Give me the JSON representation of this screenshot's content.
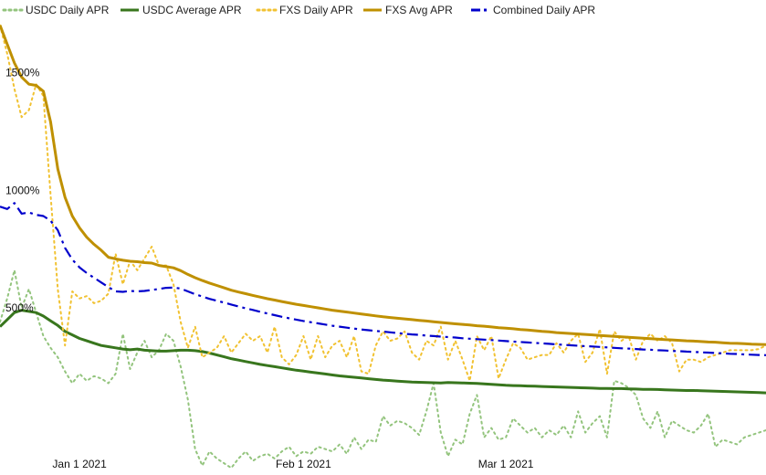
{
  "chart_data": {
    "type": "line",
    "title": "",
    "xlabel": "",
    "ylabel": "",
    "x_ticks": [
      {
        "label": "Jan 1 2021",
        "day": 11
      },
      {
        "label": "Feb 1 2021",
        "day": 42
      },
      {
        "label": "Mar 1 2021",
        "day": 70
      }
    ],
    "y_ticks": [
      {
        "label": "500%",
        "value": 500
      },
      {
        "label": "1000%",
        "value": 1000
      },
      {
        "label": "1500%",
        "value": 1500
      }
    ],
    "xlim": [
      0,
      106
    ],
    "ylim": [
      -190,
      1750
    ],
    "grid": false,
    "legend_position": "top",
    "series": [
      {
        "name": "USDC Daily APR",
        "color": "#93c47d",
        "style": "dotted",
        "x": [
          0,
          1,
          2,
          3,
          4,
          5,
          6,
          7,
          8,
          9,
          10,
          11,
          12,
          13,
          14,
          15,
          16,
          17,
          18,
          19,
          20,
          21,
          22,
          23,
          24,
          25,
          26,
          27,
          28,
          29,
          30,
          31,
          32,
          33,
          34,
          35,
          36,
          37,
          38,
          39,
          40,
          41,
          42,
          43,
          44,
          45,
          46,
          47,
          48,
          49,
          50,
          51,
          52,
          53,
          54,
          55,
          56,
          57,
          58,
          59,
          60,
          61,
          62,
          63,
          64,
          65,
          66,
          67,
          68,
          69,
          70,
          71,
          72,
          73,
          74,
          75,
          76,
          77,
          78,
          79,
          80,
          81,
          82,
          83,
          84,
          85,
          86,
          87,
          88,
          89,
          90,
          91,
          92,
          93,
          94,
          95,
          96,
          97,
          98,
          99,
          100,
          101,
          102,
          103,
          104,
          105,
          106
        ],
        "values": [
          460,
          560,
          680,
          520,
          600,
          500,
          400,
          350,
          310,
          250,
          200,
          240,
          210,
          230,
          220,
          200,
          240,
          410,
          260,
          330,
          380,
          310,
          340,
          410,
          380,
          270,
          130,
          -80,
          -150,
          -90,
          -120,
          -140,
          -160,
          -120,
          -90,
          -130,
          -110,
          -100,
          -120,
          -90,
          -70,
          -110,
          -90,
          -100,
          -70,
          -80,
          -90,
          -60,
          -100,
          -30,
          -80,
          -40,
          -50,
          60,
          20,
          40,
          30,
          10,
          -20,
          80,
          200,
          -10,
          -110,
          -40,
          -60,
          70,
          150,
          -30,
          10,
          -40,
          -30,
          50,
          20,
          -10,
          10,
          -30,
          0,
          -20,
          20,
          -30,
          80,
          -10,
          30,
          60,
          -30,
          210,
          200,
          180,
          150,
          50,
          10,
          80,
          -30,
          40,
          20,
          0,
          -10,
          20,
          70,
          -70,
          -40,
          -50,
          -60,
          -30,
          -20,
          -10,
          0
        ]
      },
      {
        "name": "USDC Average APR",
        "color": "#38761d",
        "style": "solid",
        "x": [
          0,
          1,
          2,
          3,
          4,
          5,
          6,
          7,
          8,
          9,
          10,
          11,
          12,
          13,
          14,
          15,
          16,
          17,
          18,
          19,
          20,
          21,
          22,
          23,
          24,
          25,
          26,
          27,
          28,
          29,
          30,
          31,
          32,
          33,
          34,
          35,
          36,
          37,
          38,
          39,
          40,
          41,
          42,
          43,
          44,
          45,
          46,
          47,
          48,
          49,
          50,
          51,
          52,
          53,
          54,
          55,
          56,
          57,
          58,
          59,
          60,
          61,
          62,
          63,
          64,
          65,
          66,
          67,
          68,
          69,
          70,
          71,
          72,
          73,
          74,
          75,
          76,
          77,
          78,
          79,
          80,
          81,
          82,
          83,
          84,
          85,
          86,
          87,
          88,
          89,
          90,
          91,
          92,
          93,
          94,
          95,
          96,
          97,
          98,
          99,
          100,
          101,
          102,
          103,
          104,
          105,
          106
        ],
        "values": [
          440,
          470,
          500,
          510,
          505,
          500,
          485,
          465,
          445,
          420,
          405,
          390,
          380,
          370,
          360,
          355,
          350,
          345,
          342,
          345,
          340,
          338,
          336,
          336,
          338,
          340,
          340,
          338,
          334,
          328,
          320,
          312,
          304,
          298,
          292,
          286,
          280,
          275,
          270,
          265,
          260,
          255,
          251,
          247,
          243,
          239,
          235,
          231,
          228,
          225,
          222,
          219,
          216,
          213,
          211,
          209,
          207,
          205,
          204,
          203,
          202,
          201,
          203,
          202,
          201,
          200,
          199,
          197,
          195,
          193,
          191,
          190,
          189,
          188,
          187,
          186,
          185,
          184,
          183,
          182,
          181,
          180,
          179,
          178,
          178,
          177,
          177,
          176,
          175,
          174,
          174,
          173,
          172,
          171,
          170,
          169,
          169,
          168,
          167,
          166,
          165,
          164,
          163,
          162,
          161,
          160,
          159
        ]
      },
      {
        "name": "FXS Daily APR",
        "color": "#f1c232",
        "style": "dotted",
        "x": [
          0,
          1,
          2,
          3,
          4,
          5,
          6,
          7,
          8,
          9,
          10,
          11,
          12,
          13,
          14,
          15,
          16,
          17,
          18,
          19,
          20,
          21,
          22,
          23,
          24,
          25,
          26,
          27,
          28,
          29,
          30,
          31,
          32,
          33,
          34,
          35,
          36,
          37,
          38,
          39,
          40,
          41,
          42,
          43,
          44,
          45,
          46,
          47,
          48,
          49,
          50,
          51,
          52,
          53,
          54,
          55,
          56,
          57,
          58,
          59,
          60,
          61,
          62,
          63,
          64,
          65,
          66,
          67,
          68,
          69,
          70,
          71,
          72,
          73,
          74,
          75,
          76,
          77,
          78,
          79,
          80,
          81,
          82,
          83,
          84,
          85,
          86,
          87,
          88,
          89,
          90,
          91,
          92,
          93,
          94,
          95,
          96,
          97,
          98,
          99,
          100,
          101,
          102,
          103,
          104,
          105,
          106
        ],
        "values": [
          1720,
          1600,
          1450,
          1330,
          1360,
          1470,
          1420,
          1000,
          600,
          360,
          590,
          560,
          570,
          540,
          550,
          580,
          750,
          620,
          720,
          680,
          730,
          780,
          700,
          700,
          620,
          460,
          350,
          440,
          310,
          330,
          350,
          400,
          330,
          370,
          410,
          380,
          400,
          330,
          440,
          310,
          280,
          320,
          400,
          300,
          400,
          310,
          360,
          380,
          310,
          400,
          250,
          240,
          360,
          420,
          380,
          390,
          420,
          330,
          300,
          380,
          360,
          440,
          300,
          380,
          300,
          210,
          400,
          340,
          400,
          220,
          300,
          370,
          350,
          300,
          310,
          320,
          320,
          370,
          330,
          380,
          410,
          290,
          330,
          430,
          240,
          420,
          380,
          400,
          300,
          380,
          410,
          380,
          400,
          370,
          250,
          300,
          300,
          290,
          310,
          320,
          330,
          340,
          340,
          340,
          340,
          345,
          360
        ]
      },
      {
        "name": "FXS Avg APR",
        "color": "#bf9000",
        "style": "solid",
        "x": [
          0,
          1,
          2,
          3,
          4,
          5,
          6,
          7,
          8,
          9,
          10,
          11,
          12,
          13,
          14,
          15,
          16,
          17,
          18,
          19,
          20,
          21,
          22,
          23,
          24,
          25,
          26,
          27,
          28,
          29,
          30,
          31,
          32,
          33,
          34,
          35,
          36,
          37,
          38,
          39,
          40,
          41,
          42,
          43,
          44,
          45,
          46,
          47,
          48,
          49,
          50,
          51,
          52,
          53,
          54,
          55,
          56,
          57,
          58,
          59,
          60,
          61,
          62,
          63,
          64,
          65,
          66,
          67,
          68,
          69,
          70,
          71,
          72,
          73,
          74,
          75,
          76,
          77,
          78,
          79,
          80,
          81,
          82,
          83,
          84,
          85,
          86,
          87,
          88,
          89,
          90,
          91,
          92,
          93,
          94,
          95,
          96,
          97,
          98,
          99,
          100,
          101,
          102,
          103,
          104,
          105,
          106
        ],
        "values": [
          1720,
          1640,
          1560,
          1500,
          1470,
          1465,
          1440,
          1310,
          1110,
          990,
          910,
          860,
          820,
          790,
          765,
          735,
          728,
          722,
          718,
          716,
          712,
          710,
          700,
          695,
          690,
          678,
          662,
          648,
          636,
          625,
          615,
          605,
          595,
          587,
          580,
          573,
          566,
          559,
          553,
          547,
          541,
          535,
          530,
          525,
          520,
          515,
          510,
          506,
          502,
          498,
          494,
          490,
          486,
          482,
          479,
          476,
          473,
          470,
          467,
          464,
          461,
          458,
          455,
          452,
          450,
          447,
          444,
          442,
          439,
          436,
          434,
          431,
          428,
          426,
          423,
          420,
          418,
          415,
          413,
          411,
          409,
          407,
          405,
          403,
          401,
          399,
          397,
          395,
          393,
          391,
          389,
          387,
          385,
          384,
          382,
          380,
          379,
          377,
          375,
          374,
          372,
          370,
          369,
          368,
          366,
          365,
          364
        ]
      },
      {
        "name": "Combined Daily APR",
        "color": "#0000cc",
        "style": "dashdot",
        "x": [
          0,
          1,
          2,
          3,
          4,
          5,
          6,
          7,
          8,
          9,
          10,
          11,
          12,
          13,
          14,
          15,
          16,
          17,
          18,
          19,
          20,
          21,
          22,
          23,
          24,
          25,
          26,
          27,
          28,
          29,
          30,
          31,
          32,
          33,
          34,
          35,
          36,
          37,
          38,
          39,
          40,
          41,
          42,
          43,
          44,
          45,
          46,
          47,
          48,
          49,
          50,
          51,
          52,
          53,
          54,
          55,
          56,
          57,
          58,
          59,
          60,
          61,
          62,
          63,
          64,
          65,
          66,
          67,
          68,
          69,
          70,
          71,
          72,
          73,
          74,
          75,
          76,
          77,
          78,
          79,
          80,
          81,
          82,
          83,
          84,
          85,
          86,
          87,
          88,
          89,
          90,
          91,
          92,
          93,
          94,
          95,
          96,
          97,
          98,
          99,
          100,
          101,
          102,
          103,
          104,
          105,
          106
        ],
        "values": [
          950,
          940,
          965,
          920,
          925,
          915,
          910,
          890,
          850,
          775,
          725,
          692,
          668,
          648,
          628,
          608,
          590,
          588,
          592,
          590,
          592,
          596,
          600,
          605,
          606,
          602,
          590,
          578,
          568,
          558,
          550,
          542,
          534,
          526,
          518,
          511,
          503,
          496,
          489,
          482,
          476,
          470,
          464,
          459,
          454,
          449,
          444,
          440,
          436,
          432,
          428,
          425,
          422,
          419,
          416,
          413,
          410,
          407,
          405,
          402,
          400,
          398,
          396,
          394,
          391,
          389,
          387,
          385,
          383,
          381,
          379,
          377,
          375,
          373,
          371,
          369,
          367,
          365,
          363,
          361,
          359,
          357,
          356,
          354,
          352,
          350,
          348,
          347,
          345,
          343,
          342,
          340,
          339,
          337,
          336,
          334,
          333,
          331,
          330,
          328,
          327,
          325,
          324,
          322,
          321,
          320,
          319
        ]
      }
    ]
  }
}
